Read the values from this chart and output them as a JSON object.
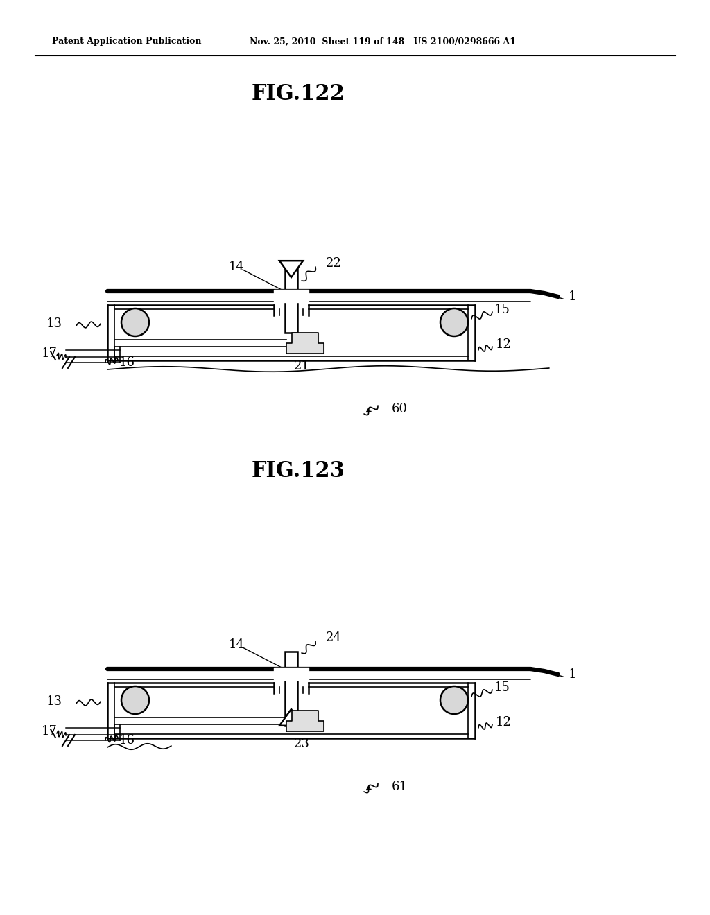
{
  "bg_color": "#ffffff",
  "line_color": "#000000",
  "lw_thin": 1.2,
  "lw_med": 1.8,
  "lw_thick": 4.5,
  "header_left": "Patent Application Publication",
  "header_right": "Nov. 25, 2010  Sheet 119 of 148   US 2100/0298666 A1",
  "fig1_label": "FIG.122",
  "fig2_label": "FIG.123"
}
